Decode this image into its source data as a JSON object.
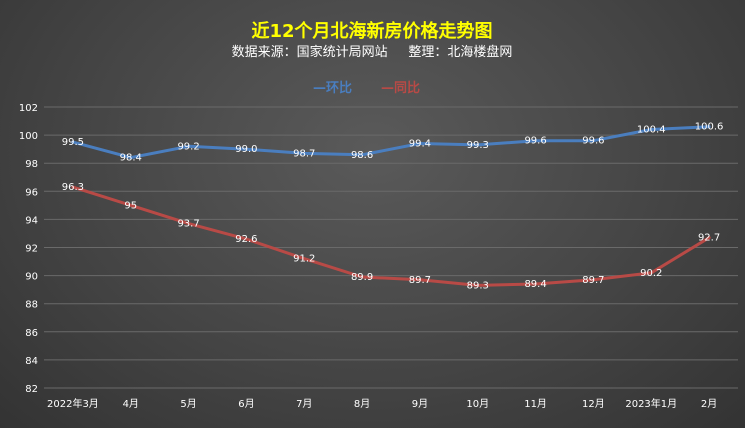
{
  "chart_data": {
    "type": "line",
    "title": "近12个月北海新房价格走势图",
    "subtitle": "数据来源：国家统计局网站     整理：北海楼盘网",
    "categories": [
      "2022年3月",
      "4月",
      "5月",
      "6月",
      "7月",
      "8月",
      "9月",
      "10月",
      "11月",
      "12月",
      "2023年1月",
      "2月"
    ],
    "series": [
      {
        "name": "环比",
        "legend_label": "—环比",
        "color": "#4a7ebf",
        "values": [
          99.5,
          98.4,
          99.2,
          99.0,
          98.7,
          98.6,
          99.4,
          99.3,
          99.6,
          99.6,
          100.4,
          100.6
        ],
        "labels": [
          "99.5",
          "98.4",
          "99.2",
          "99.0",
          "98.7",
          "98.6",
          "99.4",
          "99.3",
          "99.6",
          "99.6",
          "100.4",
          "100.6"
        ]
      },
      {
        "name": "同比",
        "legend_label": "—同比",
        "color": "#b84a46",
        "values": [
          96.3,
          95,
          93.7,
          92.6,
          91.2,
          89.9,
          89.7,
          89.3,
          89.4,
          89.7,
          90.2,
          92.7
        ],
        "labels": [
          "96.3",
          "95",
          "93.7",
          "92.6",
          "91.2",
          "89.9",
          "89.7",
          "89.3",
          "89.4",
          "89.7",
          "90.2",
          "92.7"
        ]
      }
    ],
    "ylim": [
      82,
      102
    ],
    "yticks": [
      82,
      84,
      86,
      88,
      90,
      92,
      94,
      96,
      98,
      100,
      102
    ],
    "grid": true,
    "legend_position": "top"
  }
}
